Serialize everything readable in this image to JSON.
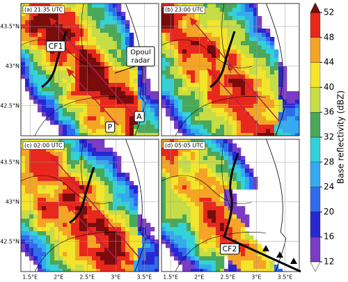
{
  "map": {
    "xlim": [
      1.34,
      3.75
    ],
    "ylim": [
      42.12,
      43.79
    ],
    "xticks": [
      {
        "value": 1.5,
        "label": "1.5°E"
      },
      {
        "value": 2,
        "label": "2°E"
      },
      {
        "value": 2.5,
        "label": "2.5°E"
      },
      {
        "value": 3,
        "label": "3°E"
      },
      {
        "value": 3.5,
        "label": "3.5°E"
      }
    ],
    "yticks": [
      {
        "value": 42.5,
        "label": "42.5°N"
      },
      {
        "value": 43,
        "label": "43°N"
      },
      {
        "value": 43.5,
        "label": "43.5°N"
      }
    ]
  },
  "panels": [
    {
      "label": "(a) 21:35 UTC",
      "annotations": [
        "CF1",
        "P",
        "A"
      ],
      "radar": [
        "Opoul",
        "radar"
      ]
    },
    {
      "label": "(b) 23:00 UTC"
    },
    {
      "label": "(c) 02:00 UTC"
    },
    {
      "label": "(d) 05:05 UTC",
      "annotations": [
        "CF2"
      ]
    }
  ],
  "colorbar": {
    "label": "Base reflectivity (dBZ)",
    "ticks": [
      12,
      16,
      20,
      24,
      28,
      32,
      36,
      40,
      44,
      48,
      52
    ],
    "colors": [
      "#7a3cc4",
      "#2727d2",
      "#2e6cec",
      "#36aaf0",
      "#33d2d8",
      "#4aa85a",
      "#c6dd45",
      "#f3e42c",
      "#f5a425",
      "#e8281c"
    ],
    "under": "#ffffff",
    "over": "#7a0c0c"
  }
}
